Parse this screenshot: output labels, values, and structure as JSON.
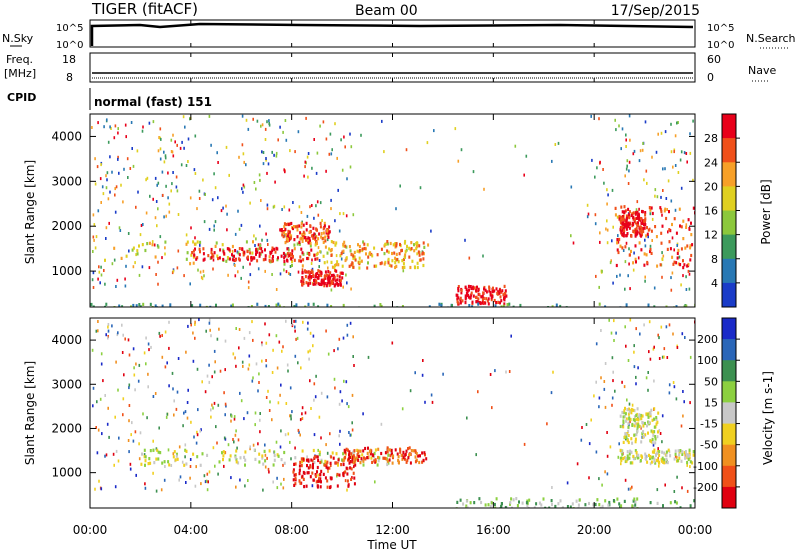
{
  "header": {
    "title": "TIGER (fitACF)",
    "beam": "Beam 00",
    "date": "17/Sep/2015"
  },
  "strips": {
    "nsky": {
      "label": "N.Sky",
      "ticks": [
        "10^5",
        "10^0"
      ],
      "right_label": "N.Search",
      "right_ticks": [
        "10^5",
        "10^0"
      ]
    },
    "freq": {
      "label": "Freq.",
      "unit": "[MHz]",
      "ticks": [
        "18",
        "8"
      ],
      "right_label": "Nave",
      "right_ticks": [
        "60",
        "0"
      ]
    },
    "cpid": {
      "label": "CPID",
      "value": "normal (fast) 151"
    }
  },
  "chart_data": [
    {
      "type": "heatmap",
      "panel": "power",
      "ylabel": "Slant Range [km]",
      "ylim": [
        200,
        4500
      ],
      "yticks": [
        "1000",
        "2000",
        "3000",
        "4000"
      ],
      "xlim": [
        0,
        24
      ],
      "colorbar": {
        "label": "Power [dB]",
        "ticks": [
          "28",
          "24",
          "20",
          "16",
          "12",
          "8",
          "4"
        ],
        "colors": [
          "#e8001a",
          "#f0501a",
          "#f7a028",
          "#e0d020",
          "#8cc83c",
          "#3c9a5c",
          "#2878b4",
          "#1a3cc8"
        ]
      },
      "regions": [
        {
          "t": [
            0.5,
            13.5
          ],
          "r": [
            1150,
            1700
          ],
          "level": 4
        },
        {
          "t": [
            4.0,
            9.0
          ],
          "r": [
            1250,
            1550
          ],
          "level": 7
        },
        {
          "t": [
            7.5,
            9.5
          ],
          "r": [
            1650,
            2100
          ],
          "level": 6
        },
        {
          "t": [
            8.3,
            10.0
          ],
          "r": [
            700,
            1050
          ],
          "level": 7
        },
        {
          "t": [
            9.5,
            13.2
          ],
          "r": [
            1100,
            1700
          ],
          "level": 5
        },
        {
          "t": [
            14.5,
            16.5
          ],
          "r": [
            300,
            700
          ],
          "level": 7
        },
        {
          "t": [
            20.8,
            24.0
          ],
          "r": [
            1100,
            2500
          ],
          "level": 6
        },
        {
          "t": [
            21.0,
            22.0
          ],
          "r": [
            1800,
            2400
          ],
          "level": 7
        },
        {
          "t": [
            0.0,
            24.0
          ],
          "r": [
            180,
            300
          ],
          "level": 2
        }
      ]
    },
    {
      "type": "heatmap",
      "panel": "velocity",
      "ylabel": "Slant Range [km]",
      "ylim": [
        200,
        4500
      ],
      "yticks": [
        "1000",
        "2000",
        "3000",
        "4000"
      ],
      "xlim": [
        0,
        24
      ],
      "colorbar": {
        "label": "Velocity [m s-1]",
        "ticks": [
          "200",
          "100",
          "50",
          "15",
          "-15",
          "-50",
          "-100",
          "-200"
        ],
        "colors": [
          "#1a2ac8",
          "#2a66b8",
          "#3c9050",
          "#8cd040",
          "#c8c8c8",
          "#f0d020",
          "#f09020",
          "#f05018",
          "#e00010"
        ]
      },
      "regions": [
        {
          "t": [
            2.0,
            12.0
          ],
          "r": [
            1200,
            1550
          ],
          "level": 4
        },
        {
          "t": [
            8.0,
            10.5
          ],
          "r": [
            700,
            1400
          ],
          "level": 8
        },
        {
          "t": [
            10.0,
            13.3
          ],
          "r": [
            1250,
            1600
          ],
          "level": 7
        },
        {
          "t": [
            21.0,
            24.0
          ],
          "r": [
            1250,
            1550
          ],
          "level": 4
        },
        {
          "t": [
            21.0,
            22.5
          ],
          "r": [
            1700,
            2500
          ],
          "level": 4
        },
        {
          "t": [
            14.5,
            24.0
          ],
          "r": [
            180,
            450
          ],
          "level": 3
        }
      ]
    }
  ],
  "xaxis": {
    "ticks": [
      "00:00",
      "04:00",
      "08:00",
      "12:00",
      "16:00",
      "20:00",
      "00:00"
    ],
    "label": "Time UT"
  }
}
